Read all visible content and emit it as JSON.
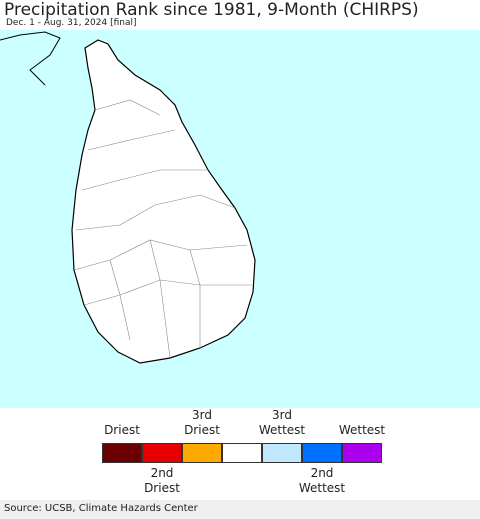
{
  "header": {
    "title": "Precipitation Rank since 1981, 9-Month (CHIRPS)",
    "subtitle": "Dec. 1 - Aug. 31, 2024 [final]"
  },
  "legend": {
    "items": [
      {
        "label": "Driest",
        "color": "#6b0000"
      },
      {
        "label": "2nd\nDriest",
        "color": "#e80000"
      },
      {
        "label": "3rd\nDriest",
        "color": "#ffaa00"
      },
      {
        "label": null,
        "color": "#ffffff"
      },
      {
        "label": "3rd\nWettest",
        "color": "#bfe8ff"
      },
      {
        "label": "2nd\nWettest",
        "color": "#0070ff"
      },
      {
        "label": "Wettest",
        "color": "#aa00ee"
      }
    ]
  },
  "footer": {
    "source": "Source: UCSB, Climate Hazards Center"
  }
}
